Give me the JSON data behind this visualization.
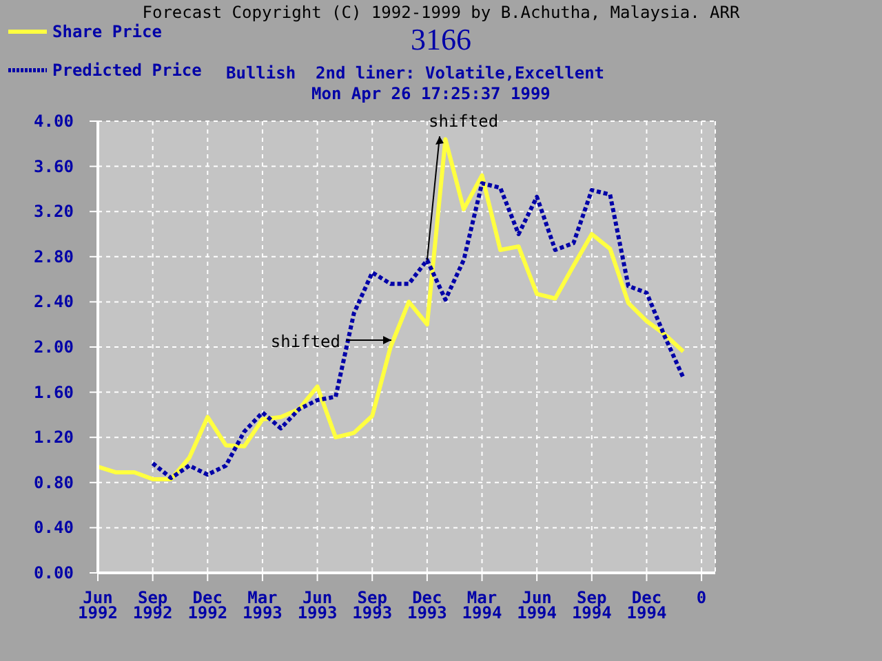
{
  "chart_data": {
    "type": "line",
    "title": "3166",
    "subtitle": "Bullish  2nd liner: Volatile,Excellent\nMon Apr 26 17:25:37 1999",
    "annotations": [
      "Forecast Copyright (C) 1992-1999 by B.Achutha, Malaysia. ARR",
      "shifted",
      {
        "text": "shifted",
        "x": "Dec 1993",
        "y": 2.77
      }
    ],
    "categories": [
      "Jun 1992",
      null,
      null,
      "Sep 1992",
      null,
      null,
      "Dec 1992",
      null,
      null,
      "Mar 1993",
      null,
      null,
      "Jun 1993",
      null,
      null,
      "Sep 1993",
      null,
      null,
      "Dec 1993",
      null,
      null,
      "Mar 1994",
      null,
      null,
      "Jun 1994",
      null,
      null,
      "Sep 1994",
      null,
      null,
      "Dec 1994",
      null,
      null,
      "0"
    ],
    "series": [
      {
        "name": "Share Price",
        "color": "#ffff40",
        "line_style": "solid",
        "values": [
          0.94,
          0.89,
          0.89,
          0.83,
          0.83,
          1.02,
          1.38,
          1.13,
          1.12,
          1.36,
          1.38,
          1.45,
          1.65,
          1.2,
          1.24,
          1.39,
          2.0,
          2.4,
          2.2,
          3.84,
          3.22,
          3.52,
          2.86,
          2.89,
          2.47,
          2.43,
          2.72,
          3.0,
          2.87,
          2.39,
          2.23,
          2.11,
          1.96,
          null
        ]
      },
      {
        "name": "Predicted Price",
        "color": "#0000a8",
        "line_style": "dotted",
        "values": [
          null,
          null,
          null,
          0.97,
          0.84,
          0.95,
          0.87,
          0.95,
          1.25,
          1.42,
          1.28,
          1.45,
          1.53,
          1.56,
          2.3,
          2.66,
          2.56,
          2.56,
          2.77,
          2.42,
          2.77,
          3.45,
          3.41,
          3.0,
          3.33,
          2.86,
          2.92,
          3.39,
          3.35,
          2.54,
          2.48,
          2.09,
          1.73,
          null
        ]
      }
    ],
    "ylim": [
      0,
      4
    ],
    "yticks": [
      {
        "value": 0,
        "label": "0.00"
      },
      {
        "value": 0.4,
        "label": "0.40"
      },
      {
        "value": 0.8,
        "label": "0.80"
      },
      {
        "value": 1.2,
        "label": "1.20"
      },
      {
        "value": 1.6,
        "label": "1.60"
      },
      {
        "value": 2,
        "label": "2.00"
      },
      {
        "value": 2.4,
        "label": "2.40"
      },
      {
        "value": 2.8,
        "label": "2.80"
      },
      {
        "value": 3.2,
        "label": "3.20"
      },
      {
        "value": 3.6,
        "label": "3.60"
      },
      {
        "value": 4,
        "label": "4.00"
      }
    ],
    "grid": true,
    "legend": "top left",
    "marker": "none"
  }
}
